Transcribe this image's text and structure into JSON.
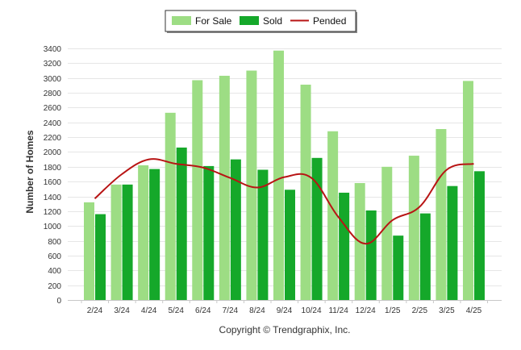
{
  "chart_data": {
    "type": "bar",
    "categories": [
      "2/24",
      "3/24",
      "4/24",
      "5/24",
      "6/24",
      "7/24",
      "8/24",
      "9/24",
      "10/24",
      "11/24",
      "12/24",
      "1/25",
      "2/25",
      "3/25",
      "4/25"
    ],
    "series": [
      {
        "name": "For Sale",
        "type": "bar",
        "color": "#9ddd84",
        "values": [
          1320,
          1560,
          1820,
          2530,
          2970,
          3030,
          3100,
          3370,
          2910,
          2280,
          1580,
          1800,
          1950,
          2310,
          2960
        ]
      },
      {
        "name": "Sold",
        "type": "bar",
        "color": "#15a82a",
        "values": [
          1160,
          1560,
          1770,
          2060,
          1810,
          1900,
          1760,
          1490,
          1920,
          1450,
          1210,
          870,
          1170,
          1540,
          1740
        ]
      },
      {
        "name": "Pended",
        "type": "line",
        "color": "#b81414",
        "values": [
          1370,
          1700,
          1900,
          1840,
          1790,
          1650,
          1520,
          1660,
          1650,
          1120,
          760,
          1080,
          1260,
          1760,
          1840
        ]
      }
    ],
    "ylabel": "Number of Homes",
    "ylim": [
      0,
      3400
    ],
    "yticks": [
      0,
      200,
      400,
      600,
      800,
      1000,
      1200,
      1400,
      1600,
      1800,
      2000,
      2200,
      2400,
      2600,
      2800,
      3000,
      3200,
      3400
    ],
    "grid": true,
    "legend": "top-center",
    "credit": "Copyright © Trendgraphix, Inc."
  }
}
